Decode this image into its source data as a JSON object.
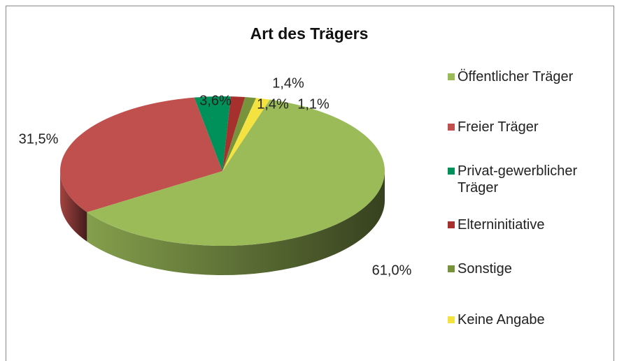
{
  "chart_data": {
    "type": "pie3d",
    "title": "Art des Trägers",
    "categories": [
      "Öffentlicher Träger",
      "Freier Träger",
      "Privat-gewerblicher Träger",
      "Elterninitiative",
      "Sonstige",
      "Keine Angabe"
    ],
    "values": [
      61.0,
      31.5,
      3.6,
      1.4,
      1.1,
      1.4
    ],
    "value_labels": [
      "61,0%",
      "31,5%",
      "3,6%",
      "1,4%",
      "1,1%",
      "1,4%"
    ],
    "colors": [
      "#9bbb59",
      "#c0504d",
      "#00915a",
      "#a5302e",
      "#77933c",
      "#f3e23f"
    ],
    "legend": "right"
  }
}
